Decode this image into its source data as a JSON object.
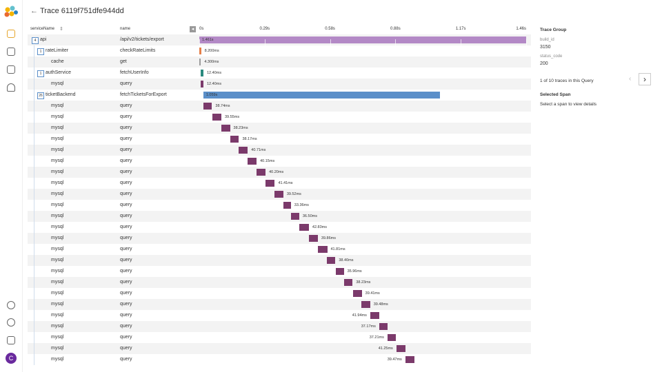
{
  "header": {
    "title": "Trace 6119f751dfe944dd"
  },
  "columns": {
    "service": "serviceName",
    "name": "name"
  },
  "axis": {
    "range": [
      0,
      1461
    ],
    "ticks": [
      {
        "value": 0,
        "label": "0s"
      },
      {
        "value": 292.2,
        "label": "0.29s"
      },
      {
        "value": 584.4,
        "label": "0.58s"
      },
      {
        "value": 876.6,
        "label": "0.88s"
      },
      {
        "value": 1168.8,
        "label": "1.17s"
      },
      {
        "value": 1461,
        "label": "1.46s"
      }
    ]
  },
  "spans": [
    {
      "service": "api",
      "children": "4",
      "depth": 0,
      "name": "/api/v2/tickets/export",
      "start": 0,
      "duration": 1461,
      "duration_label": "1.461s",
      "color": "#b389c6"
    },
    {
      "service": "rateLimiter",
      "children": "1",
      "depth": 1,
      "name": "checkRateLimits",
      "start": 0,
      "duration": 8.2,
      "duration_label": "8.200ms",
      "color": "#e5804a"
    },
    {
      "service": "cache",
      "depth": 2,
      "name": "get",
      "start": 1,
      "duration": 4.3,
      "duration_label": "4.300ms",
      "color": "#9a9a9a"
    },
    {
      "service": "authService",
      "children": "1",
      "depth": 1,
      "name": "fetchUserInfo",
      "start": 6,
      "duration": 12.4,
      "duration_label": "12.40ms",
      "color": "#2a8a7e"
    },
    {
      "service": "mysql",
      "depth": 2,
      "name": "query",
      "start": 6,
      "duration": 12.4,
      "duration_label": "12.40ms",
      "color": "#7b3a6b"
    },
    {
      "service": "ticketBackend",
      "children": "26",
      "depth": 1,
      "name": "fetchTicketsForExport",
      "start": 18,
      "duration": 1059,
      "duration_label": "1.059s",
      "color": "#5b8fc9"
    },
    {
      "service": "mysql",
      "depth": 2,
      "name": "query",
      "start": 18,
      "duration": 38.74,
      "duration_label": "38.74ms",
      "color": "#7b3a6b"
    },
    {
      "service": "mysql",
      "depth": 2,
      "name": "query",
      "start": 59,
      "duration": 39.55,
      "duration_label": "39.55ms",
      "color": "#7b3a6b"
    },
    {
      "service": "mysql",
      "depth": 2,
      "name": "query",
      "start": 99,
      "duration": 38.23,
      "duration_label": "38.23ms",
      "color": "#7b3a6b"
    },
    {
      "service": "mysql",
      "depth": 2,
      "name": "query",
      "start": 139,
      "duration": 38.17,
      "duration_label": "38.17ms",
      "color": "#7b3a6b"
    },
    {
      "service": "mysql",
      "depth": 2,
      "name": "query",
      "start": 176,
      "duration": 40.71,
      "duration_label": "40.71ms",
      "color": "#7b3a6b"
    },
    {
      "service": "mysql",
      "depth": 2,
      "name": "query",
      "start": 216,
      "duration": 40.15,
      "duration_label": "40.15ms",
      "color": "#7b3a6b"
    },
    {
      "service": "mysql",
      "depth": 2,
      "name": "query",
      "start": 256,
      "duration": 40.2,
      "duration_label": "40.20ms",
      "color": "#7b3a6b"
    },
    {
      "service": "mysql",
      "depth": 2,
      "name": "query",
      "start": 296,
      "duration": 41.41,
      "duration_label": "41.41ms",
      "color": "#7b3a6b"
    },
    {
      "service": "mysql",
      "depth": 2,
      "name": "query",
      "start": 336,
      "duration": 39.52,
      "duration_label": "39.52ms",
      "color": "#7b3a6b"
    },
    {
      "service": "mysql",
      "depth": 2,
      "name": "query",
      "start": 376,
      "duration": 33.36,
      "duration_label": "33.36ms",
      "color": "#7b3a6b"
    },
    {
      "service": "mysql",
      "depth": 2,
      "name": "query",
      "start": 410,
      "duration": 36.5,
      "duration_label": "36.50ms",
      "color": "#7b3a6b"
    },
    {
      "service": "mysql",
      "depth": 2,
      "name": "query",
      "start": 447,
      "duration": 42.83,
      "duration_label": "42.83ms",
      "color": "#7b3a6b"
    },
    {
      "service": "mysql",
      "depth": 2,
      "name": "query",
      "start": 490,
      "duration": 39.86,
      "duration_label": "39.86ms",
      "color": "#7b3a6b"
    },
    {
      "service": "mysql",
      "depth": 2,
      "name": "query",
      "start": 530,
      "duration": 41.81,
      "duration_label": "41.81ms",
      "color": "#7b3a6b"
    },
    {
      "service": "mysql",
      "depth": 2,
      "name": "query",
      "start": 570,
      "duration": 38.4,
      "duration_label": "38.40ms",
      "color": "#7b3a6b"
    },
    {
      "service": "mysql",
      "depth": 2,
      "name": "query",
      "start": 610,
      "duration": 35.96,
      "duration_label": "35.96ms",
      "color": "#7b3a6b"
    },
    {
      "service": "mysql",
      "depth": 2,
      "name": "query",
      "start": 647,
      "duration": 38.23,
      "duration_label": "38.23ms",
      "color": "#7b3a6b"
    },
    {
      "service": "mysql",
      "depth": 2,
      "name": "query",
      "start": 687,
      "duration": 39.41,
      "duration_label": "39.41ms",
      "color": "#7b3a6b"
    },
    {
      "service": "mysql",
      "depth": 2,
      "name": "query",
      "start": 724,
      "duration": 39.48,
      "duration_label": "39.48ms",
      "color": "#7b3a6b"
    },
    {
      "service": "mysql",
      "depth": 2,
      "name": "query",
      "start": 764,
      "duration": 41.94,
      "duration_label": "41.94ms",
      "color": "#7b3a6b"
    },
    {
      "service": "mysql",
      "depth": 2,
      "name": "query",
      "start": 804,
      "duration": 37.17,
      "duration_label": "37.17ms",
      "color": "#7b3a6b"
    },
    {
      "service": "mysql",
      "depth": 2,
      "name": "query",
      "start": 841,
      "duration": 37.21,
      "duration_label": "37.21ms",
      "color": "#7b3a6b"
    },
    {
      "service": "mysql",
      "depth": 2,
      "name": "query",
      "start": 881,
      "duration": 41.25,
      "duration_label": "41.25ms",
      "color": "#7b3a6b"
    },
    {
      "service": "mysql",
      "depth": 2,
      "name": "query",
      "start": 921,
      "duration": 39.47,
      "duration_label": "39.47ms",
      "color": "#7b3a6b"
    }
  ],
  "panel": {
    "group_title": "Trace Group",
    "fields": [
      {
        "key": "build_id",
        "value": "3150"
      },
      {
        "key": "status_code",
        "value": "200"
      }
    ],
    "pager": "1 of 10 traces in this Query",
    "selected_title": "Selected Span",
    "selected_hint": "Select a span to view details"
  },
  "user": {
    "initial": "C"
  }
}
